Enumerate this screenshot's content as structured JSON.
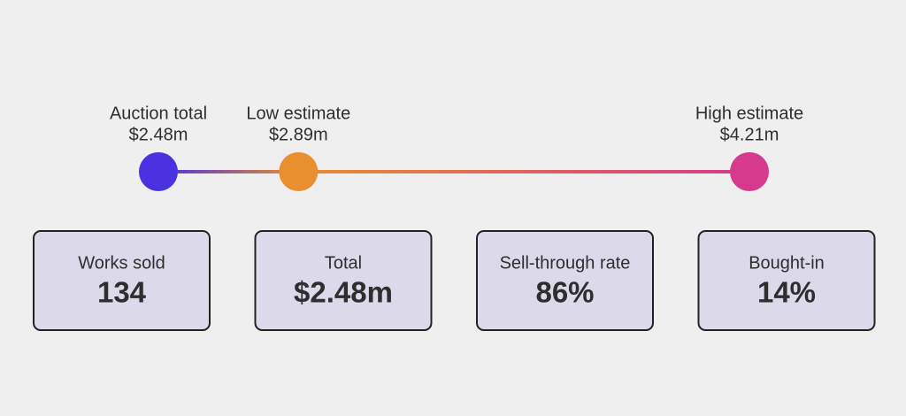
{
  "chart_data": {
    "type": "dot-range",
    "categories": [
      "Auction total",
      "Low estimate",
      "High estimate"
    ],
    "values": [
      2.48,
      2.89,
      4.21
    ],
    "value_labels": [
      "$2.48m",
      "$2.89m",
      "$4.21m"
    ],
    "colors": [
      "#4a32e0",
      "#e88f30",
      "#d63a8c"
    ]
  },
  "cards": [
    {
      "label": "Works sold",
      "value": "134"
    },
    {
      "label": "Total",
      "value": "$2.48m"
    },
    {
      "label": "Sell-through rate",
      "value": "86%"
    },
    {
      "label": "Bought-in",
      "value": "14%"
    }
  ]
}
